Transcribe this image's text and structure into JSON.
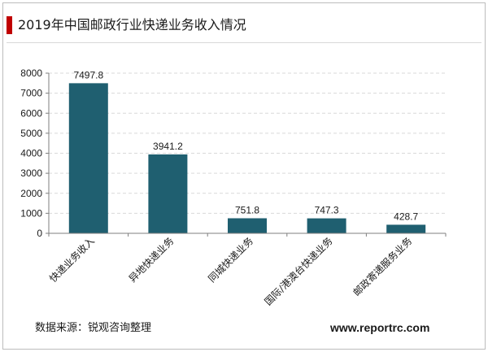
{
  "title": "2019年中国邮政行业快递业务收入情况",
  "source": "数据来源：锐观咨询整理",
  "website": "www.reportrc.com",
  "colors": {
    "bar": "#1f5f70",
    "accent": "#c00000",
    "grid": "#d9d9d9",
    "axis": "#7f7f7f"
  },
  "chart_data": {
    "type": "bar",
    "title": "2019年中国邮政行业快递业务收入情况",
    "xlabel": "",
    "ylabel": "",
    "categories": [
      "快递业务收入",
      "异地快递业务",
      "同城快递业务",
      "国际/港澳台快递业务",
      "邮政寄递服务业务"
    ],
    "values": [
      7497.8,
      3941.2,
      751.8,
      747.3,
      428.7
    ],
    "value_labels": [
      "7497.8",
      "3941.2",
      "751.8",
      "747.3",
      "428.7"
    ],
    "ylim": [
      0,
      8000
    ],
    "yticks": [
      0,
      1000,
      2000,
      3000,
      4000,
      5000,
      6000,
      7000,
      8000
    ],
    "ytick_labels": [
      "0",
      "1000",
      "2000",
      "3000",
      "4000",
      "5000",
      "6000",
      "7000",
      "8000"
    ],
    "grid": true,
    "legend": "none"
  }
}
